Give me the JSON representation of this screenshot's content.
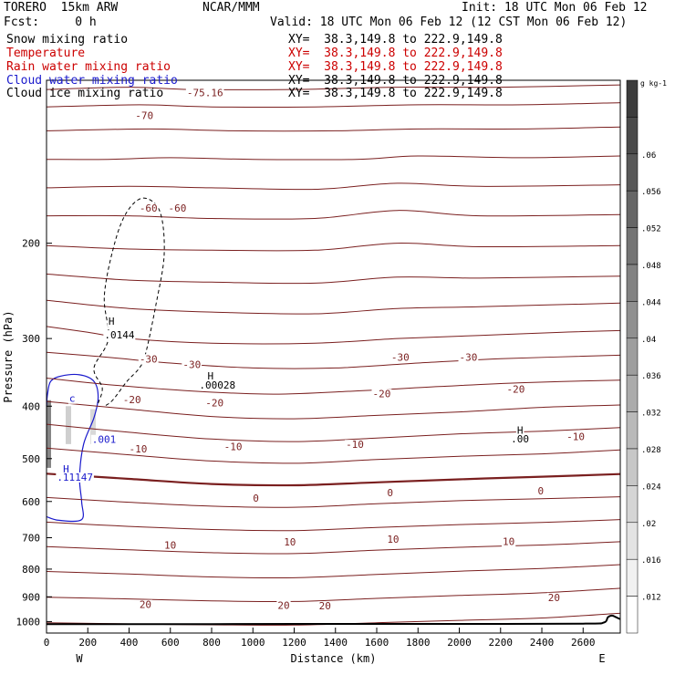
{
  "header": {
    "model": "TORERO  15km ARW",
    "center": "NCAR/MMM",
    "init": "Init: 18 UTC Mon 06 Feb 12",
    "fcst": "Fcst:     0 h",
    "valid": "Valid: 18 UTC Mon 06 Feb 12 (12 CST Mon 06 Feb 12)"
  },
  "legend": [
    {
      "label": "Snow mixing ratio",
      "xy": "XY=  38.3,149.8 to 222.9,149.8",
      "color": "#000000",
      "xy_color": "#000000"
    },
    {
      "label": "Temperature",
      "xy": "XY=  38.3,149.8 to 222.9,149.8",
      "color": "#cc0000",
      "xy_color": "#cc0000"
    },
    {
      "label": "Rain water mixing ratio",
      "xy": "XY=  38.3,149.8 to 222.9,149.8",
      "color": "#cc0000",
      "xy_color": "#cc0000"
    },
    {
      "label": "Cloud water mixing ratio",
      "xy": "XY=  38.3,149.8 to 222.9,149.8",
      "color": "#1a1acc",
      "xy_color": "#000000"
    },
    {
      "label": "Cloud ice mixing ratio",
      "xy": "XY=  38.3,149.8 to 222.9,149.8",
      "color": "#000000",
      "xy_color": "#000000"
    }
  ],
  "chart_data": {
    "type": "contour",
    "xlabel": "Distance (km)",
    "ylabel": "Pressure (hPa)",
    "xlim": [
      0,
      2780
    ],
    "ylim": [
      1050,
      100
    ],
    "yscale": "log",
    "x_ticks": [
      0,
      200,
      400,
      600,
      800,
      1000,
      1200,
      1400,
      1600,
      1800,
      2000,
      2200,
      2400,
      2600
    ],
    "y_ticks": [
      200,
      300,
      400,
      500,
      600,
      700,
      800,
      900,
      1000
    ],
    "x_end_labels": {
      "left": "W",
      "right": "E"
    },
    "colorbar": {
      "unit": "g kg-1",
      "ticks": [
        ".012",
        ".016",
        ".02",
        ".024",
        ".028",
        ".032",
        ".036",
        ".04",
        ".044",
        ".048",
        ".052",
        ".056",
        ".06"
      ]
    },
    "temperature_contours": [
      {
        "value": -75.16,
        "label": "-75.16",
        "p": [
          [
            0,
            104
          ],
          [
            400,
            103
          ],
          [
            700,
            104
          ],
          [
            1200,
            104
          ],
          [
            1700,
            103
          ],
          [
            2200,
            103
          ],
          [
            2780,
            102
          ]
        ]
      },
      {
        "value": -70,
        "label": "-70",
        "p": [
          [
            0,
            112
          ],
          [
            450,
            111
          ],
          [
            800,
            112
          ],
          [
            1300,
            112
          ],
          [
            1800,
            111
          ],
          [
            2300,
            111
          ],
          [
            2780,
            110
          ]
        ]
      },
      {
        "value": -65,
        "p": [
          [
            0,
            124
          ],
          [
            500,
            123
          ],
          [
            900,
            124
          ],
          [
            1400,
            124
          ],
          [
            1800,
            123
          ],
          [
            2300,
            123
          ],
          [
            2780,
            122
          ]
        ]
      },
      {
        "value": -60,
        "label": "-60",
        "p": [
          [
            0,
            140
          ],
          [
            300,
            140
          ],
          [
            600,
            139
          ],
          [
            1000,
            140
          ],
          [
            1500,
            140
          ],
          [
            1800,
            138
          ],
          [
            2300,
            139
          ],
          [
            2780,
            138
          ]
        ]
      },
      {
        "value": -55,
        "p": [
          [
            0,
            158
          ],
          [
            400,
            157
          ],
          [
            800,
            158
          ],
          [
            1300,
            159
          ],
          [
            1700,
            155
          ],
          [
            2100,
            157
          ],
          [
            2780,
            156
          ]
        ]
      },
      {
        "value": -50,
        "p": [
          [
            0,
            178
          ],
          [
            400,
            178
          ],
          [
            800,
            180
          ],
          [
            1300,
            180
          ],
          [
            1700,
            174
          ],
          [
            2100,
            178
          ],
          [
            2780,
            177
          ]
        ]
      },
      {
        "value": -45,
        "p": [
          [
            0,
            202
          ],
          [
            400,
            205
          ],
          [
            800,
            206
          ],
          [
            1300,
            206
          ],
          [
            1700,
            200
          ],
          [
            2100,
            203
          ],
          [
            2780,
            202
          ]
        ]
      },
      {
        "value": -40,
        "p": [
          [
            0,
            228
          ],
          [
            400,
            234
          ],
          [
            800,
            236
          ],
          [
            1300,
            237
          ],
          [
            1700,
            231
          ],
          [
            2100,
            232
          ],
          [
            2780,
            230
          ]
        ]
      },
      {
        "value": -35,
        "p": [
          [
            0,
            255
          ],
          [
            400,
            264
          ],
          [
            800,
            268
          ],
          [
            1300,
            270
          ],
          [
            1700,
            264
          ],
          [
            2100,
            262
          ],
          [
            2780,
            258
          ]
        ]
      },
      {
        "value": -30,
        "label": "-30",
        "p": [
          [
            0,
            285
          ],
          [
            200,
            292
          ],
          [
            400,
            300
          ],
          [
            800,
            306
          ],
          [
            1300,
            306
          ],
          [
            1700,
            300
          ],
          [
            2100,
            296
          ],
          [
            2500,
            292
          ],
          [
            2780,
            290
          ]
        ]
      },
      {
        "value": -25,
        "p": [
          [
            0,
            318
          ],
          [
            300,
            325
          ],
          [
            600,
            333
          ],
          [
            1000,
            340
          ],
          [
            1400,
            340
          ],
          [
            1800,
            333
          ],
          [
            2200,
            327
          ],
          [
            2780,
            322
          ]
        ]
      },
      {
        "value": -20,
        "label": "-20",
        "p": [
          [
            0,
            355
          ],
          [
            300,
            365
          ],
          [
            700,
            375
          ],
          [
            1100,
            380
          ],
          [
            1500,
            375
          ],
          [
            1900,
            368
          ],
          [
            2300,
            362
          ],
          [
            2780,
            358
          ]
        ]
      },
      {
        "value": -15,
        "p": [
          [
            0,
            392
          ],
          [
            400,
            405
          ],
          [
            800,
            418
          ],
          [
            1200,
            422
          ],
          [
            1600,
            416
          ],
          [
            2000,
            410
          ],
          [
            2400,
            402
          ],
          [
            2780,
            398
          ]
        ]
      },
      {
        "value": -10,
        "label": "-10",
        "p": [
          [
            0,
            432
          ],
          [
            400,
            447
          ],
          [
            800,
            460
          ],
          [
            1200,
            465
          ],
          [
            1600,
            458
          ],
          [
            2000,
            450
          ],
          [
            2400,
            445
          ],
          [
            2780,
            438
          ]
        ]
      },
      {
        "value": -5,
        "p": [
          [
            0,
            478
          ],
          [
            400,
            492
          ],
          [
            800,
            505
          ],
          [
            1200,
            510
          ],
          [
            1600,
            502
          ],
          [
            2000,
            495
          ],
          [
            2400,
            490
          ],
          [
            2780,
            482
          ]
        ]
      },
      {
        "value": 0,
        "label": "0",
        "bold": true,
        "p": [
          [
            0,
            533
          ],
          [
            400,
            545
          ],
          [
            800,
            557
          ],
          [
            1200,
            560
          ],
          [
            1600,
            553
          ],
          [
            2000,
            546
          ],
          [
            2400,
            540
          ],
          [
            2780,
            534
          ]
        ]
      },
      {
        "value": 5,
        "p": [
          [
            0,
            590
          ],
          [
            400,
            602
          ],
          [
            800,
            612
          ],
          [
            1200,
            615
          ],
          [
            1600,
            606
          ],
          [
            2000,
            598
          ],
          [
            2400,
            593
          ],
          [
            2780,
            588
          ]
        ]
      },
      {
        "value": 10,
        "label": "10",
        "p": [
          [
            0,
            655
          ],
          [
            400,
            667
          ],
          [
            800,
            676
          ],
          [
            1200,
            679
          ],
          [
            1600,
            670
          ],
          [
            2000,
            662
          ],
          [
            2400,
            656
          ],
          [
            2780,
            648
          ]
        ]
      },
      {
        "value": 15,
        "p": [
          [
            0,
            727
          ],
          [
            400,
            737
          ],
          [
            800,
            746
          ],
          [
            1200,
            749
          ],
          [
            1600,
            738
          ],
          [
            2000,
            729
          ],
          [
            2400,
            722
          ],
          [
            2780,
            712
          ]
        ]
      },
      {
        "value": 20,
        "label": "20",
        "p": [
          [
            0,
            808
          ],
          [
            400,
            817
          ],
          [
            800,
            827
          ],
          [
            1200,
            830
          ],
          [
            1600,
            818
          ],
          [
            2000,
            807
          ],
          [
            2400,
            798
          ],
          [
            2780,
            785
          ]
        ]
      },
      {
        "value": 25,
        "p": [
          [
            0,
            902
          ],
          [
            400,
            908
          ],
          [
            800,
            916
          ],
          [
            1200,
            918
          ],
          [
            1600,
            906
          ],
          [
            2000,
            895
          ],
          [
            2400,
            885
          ],
          [
            2780,
            868
          ]
        ]
      },
      {
        "value": 30,
        "p": [
          [
            0,
            1005
          ],
          [
            400,
            1010
          ],
          [
            800,
            1014
          ],
          [
            1200,
            1015
          ],
          [
            1600,
            1005
          ],
          [
            2000,
            995
          ],
          [
            2400,
            985
          ],
          [
            2780,
            965
          ]
        ]
      }
    ],
    "labels": [
      {
        "text": "-75.16",
        "x": 680,
        "p": 107,
        "color": "#7a1f1f"
      },
      {
        "text": "-70",
        "x": 430,
        "p": 118,
        "color": "#7a1f1f"
      },
      {
        "text": "-60",
        "x": 450,
        "p": 175,
        "color": "#7a1f1f"
      },
      {
        "text": "-60",
        "x": 590,
        "p": 175,
        "color": "#7a1f1f"
      },
      {
        "text": "-30",
        "x": 450,
        "p": 332,
        "color": "#7a1f1f"
      },
      {
        "text": "-30",
        "x": 660,
        "p": 340,
        "color": "#7a1f1f"
      },
      {
        "text": "-30",
        "x": 1670,
        "p": 330,
        "color": "#7a1f1f"
      },
      {
        "text": "-30",
        "x": 2000,
        "p": 330,
        "color": "#7a1f1f"
      },
      {
        "text": "-20",
        "x": 370,
        "p": 395,
        "color": "#7a1f1f"
      },
      {
        "text": "-20",
        "x": 770,
        "p": 400,
        "color": "#7a1f1f"
      },
      {
        "text": "-20",
        "x": 1580,
        "p": 385,
        "color": "#7a1f1f"
      },
      {
        "text": "-20",
        "x": 2230,
        "p": 378,
        "color": "#7a1f1f"
      },
      {
        "text": "-10",
        "x": 400,
        "p": 487,
        "color": "#7a1f1f"
      },
      {
        "text": "-10",
        "x": 860,
        "p": 482,
        "color": "#7a1f1f"
      },
      {
        "text": "-10",
        "x": 1450,
        "p": 478,
        "color": "#7a1f1f"
      },
      {
        "text": "-10",
        "x": 2520,
        "p": 462,
        "color": "#7a1f1f"
      },
      {
        "text": "0",
        "x": 1000,
        "p": 600,
        "color": "#7a1f1f"
      },
      {
        "text": "0",
        "x": 1650,
        "p": 587,
        "color": "#7a1f1f"
      },
      {
        "text": "0",
        "x": 2380,
        "p": 582,
        "color": "#7a1f1f"
      },
      {
        "text": "10",
        "x": 570,
        "p": 733,
        "color": "#7a1f1f"
      },
      {
        "text": "10",
        "x": 1150,
        "p": 723,
        "color": "#7a1f1f"
      },
      {
        "text": "10",
        "x": 1650,
        "p": 715,
        "color": "#7a1f1f"
      },
      {
        "text": "10",
        "x": 2210,
        "p": 722,
        "color": "#7a1f1f"
      },
      {
        "text": "20",
        "x": 450,
        "p": 944,
        "color": "#7a1f1f"
      },
      {
        "text": "20",
        "x": 1120,
        "p": 948,
        "color": "#7a1f1f"
      },
      {
        "text": "20",
        "x": 1320,
        "p": 950,
        "color": "#7a1f1f"
      },
      {
        "text": "20",
        "x": 2430,
        "p": 916,
        "color": "#7a1f1f"
      },
      {
        "text": "H",
        "x": 300,
        "p": 283,
        "color": "#000000"
      },
      {
        "text": ".0144",
        "x": 280,
        "p": 300,
        "color": "#000000"
      },
      {
        "text": "H",
        "x": 780,
        "p": 357,
        "color": "#000000"
      },
      {
        "text": ".00028",
        "x": 740,
        "p": 371,
        "color": "#000000"
      },
      {
        "text": "H",
        "x": 2280,
        "p": 450,
        "color": "#000000"
      },
      {
        "text": ".00",
        "x": 2250,
        "p": 467,
        "color": "#000000"
      },
      {
        "text": "c",
        "x": 110,
        "p": 393,
        "color": "#1a1acc"
      },
      {
        "text": ".001",
        "x": 220,
        "p": 468,
        "color": "#1a1acc"
      },
      {
        "text": "H",
        "x": 80,
        "p": 530,
        "color": "#1a1acc"
      },
      {
        "text": ".11147",
        "x": 50,
        "p": 549,
        "color": "#1a1acc"
      }
    ]
  }
}
